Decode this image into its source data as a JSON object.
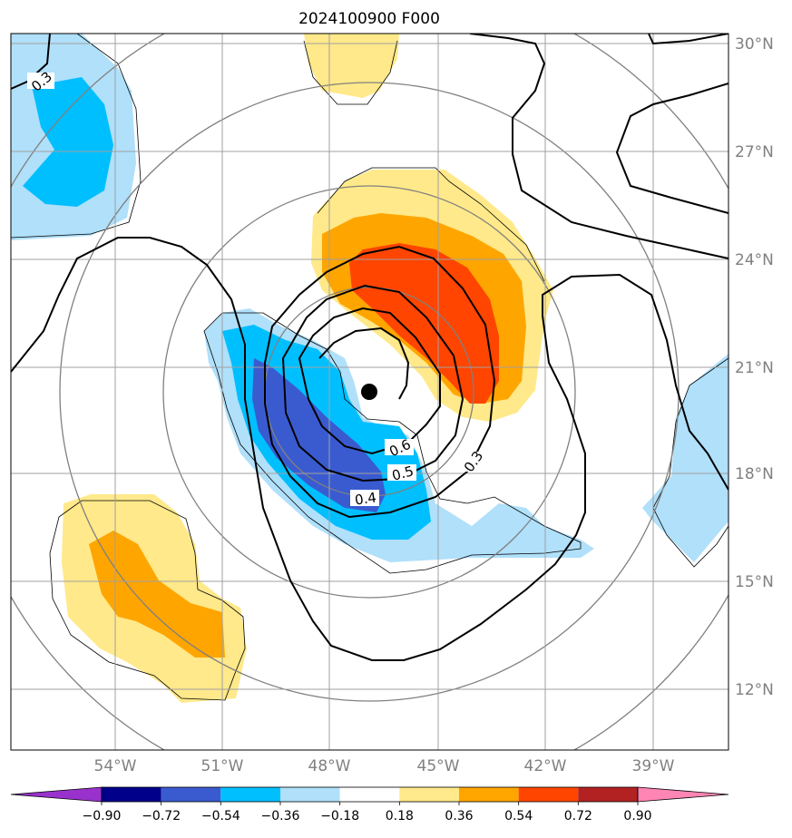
{
  "title": "2024100900 F000",
  "lat_labels": [
    "30°N",
    "27°N",
    "24°N",
    "21°N",
    "18°N",
    "15°N",
    "12°N"
  ],
  "lon_labels": [
    "54°W",
    "51°W",
    "48°W",
    "45°W",
    "42°W",
    "39°W"
  ],
  "contour_labels": [
    "0.3",
    "0.6",
    "0.5",
    "0.4",
    "0.3"
  ],
  "colorbar": {
    "ticks": [
      "−0.90",
      "−0.72",
      "−0.54",
      "−0.36",
      "−0.18",
      "0.18",
      "0.36",
      "0.54",
      "0.72",
      "0.90"
    ],
    "colors": [
      "#9932cc",
      "#00008b",
      "#3a5bd0",
      "#00bfff",
      "#b0e0fa",
      "#ffffff",
      "#ffe98a",
      "#ffa500",
      "#ff4500",
      "#b22222",
      "#ff85b4"
    ]
  },
  "center_marker": "storm-center-dot",
  "colors": {
    "grid": "#a0a0a0",
    "range_rings": "#808080",
    "contour": "#000000"
  }
}
